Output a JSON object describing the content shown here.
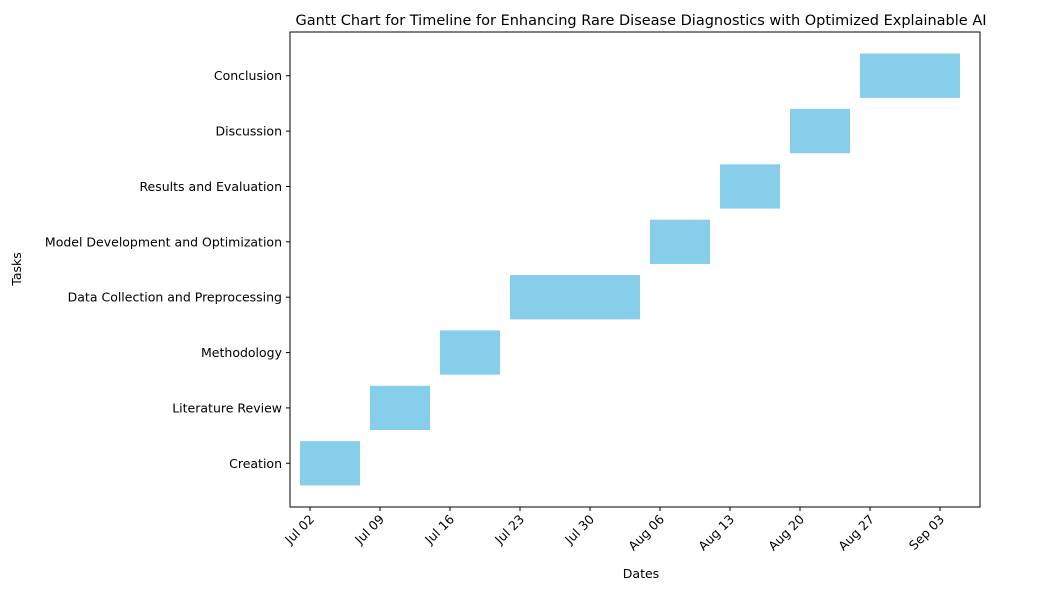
{
  "chart_data": {
    "type": "gantt",
    "title": "Gantt Chart for  Timeline for Enhancing Rare Disease Diagnostics with Optimized Explainable AI",
    "xlabel": "Dates",
    "ylabel": "Tasks",
    "x_ticks": [
      "Jul 02",
      "Jul 09",
      "Jul 16",
      "Jul 23",
      "Jul 30",
      "Aug 06",
      "Aug 13",
      "Aug 20",
      "Aug 27",
      "Sep 03"
    ],
    "x_range": [
      "2024-06-30",
      "2024-09-07"
    ],
    "bar_color": "#87ceeb",
    "tasks": [
      {
        "name": "Creation",
        "start": "2024-07-01",
        "end": "2024-07-07"
      },
      {
        "name": "Literature Review",
        "start": "2024-07-08",
        "end": "2024-07-14"
      },
      {
        "name": "Methodology",
        "start": "2024-07-15",
        "end": "2024-07-21"
      },
      {
        "name": "Data Collection and Preprocessing",
        "start": "2024-07-22",
        "end": "2024-08-04"
      },
      {
        "name": "Model Development and Optimization",
        "start": "2024-08-05",
        "end": "2024-08-11"
      },
      {
        "name": "Results and Evaluation",
        "start": "2024-08-12",
        "end": "2024-08-18"
      },
      {
        "name": "Discussion",
        "start": "2024-08-19",
        "end": "2024-08-25"
      },
      {
        "name": "Conclusion",
        "start": "2024-08-26",
        "end": "2024-09-05"
      }
    ]
  }
}
